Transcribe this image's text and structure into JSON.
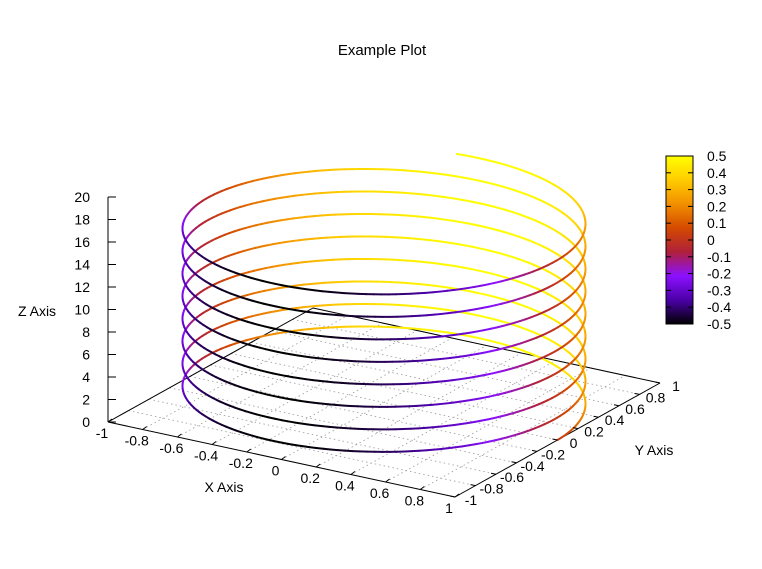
{
  "chart_data": {
    "type": "line",
    "subtype": "3d-helix",
    "title": "Example Plot",
    "xlabel": "X Axis",
    "ylabel": "Y Axis",
    "zlabel": "Z Axis",
    "xlim": [
      -1,
      1
    ],
    "ylim": [
      -1,
      1
    ],
    "zlim": [
      0,
      20
    ],
    "x_ticks": [
      "-1",
      "-0.8",
      "-0.6",
      "-0.4",
      "-0.2",
      "0",
      "0.2",
      "0.4",
      "0.6",
      "0.8",
      "1"
    ],
    "y_ticks": [
      "-1",
      "-0.8",
      "-0.6",
      "-0.4",
      "-0.2",
      "0",
      "0.2",
      "0.4",
      "0.6",
      "0.8",
      "1"
    ],
    "z_ticks": [
      "0",
      "2",
      "4",
      "6",
      "8",
      "10",
      "12",
      "14",
      "16",
      "18",
      "20"
    ],
    "colorbar": {
      "range": [
        -0.5,
        0.5
      ],
      "ticks": [
        "0.5",
        "0.4",
        "0.3",
        "0.2",
        "0.1",
        "0",
        "-0.1",
        "-0.2",
        "-0.3",
        "-0.4",
        "-0.5"
      ],
      "palette": [
        "#000000",
        "#4b00a8",
        "#8b10ff",
        "#b0203a",
        "#d44a00",
        "#f28f00",
        "#ffcc00",
        "#ffff00"
      ]
    },
    "series": [
      {
        "curve": "helix",
        "x": "cos(t)",
        "y": "sin(t)",
        "z": "t / pi",
        "t_range": [
          0,
          52
        ],
        "color_value": "0.5 * sin(t)"
      }
    ],
    "grid": true,
    "legend": "none"
  }
}
